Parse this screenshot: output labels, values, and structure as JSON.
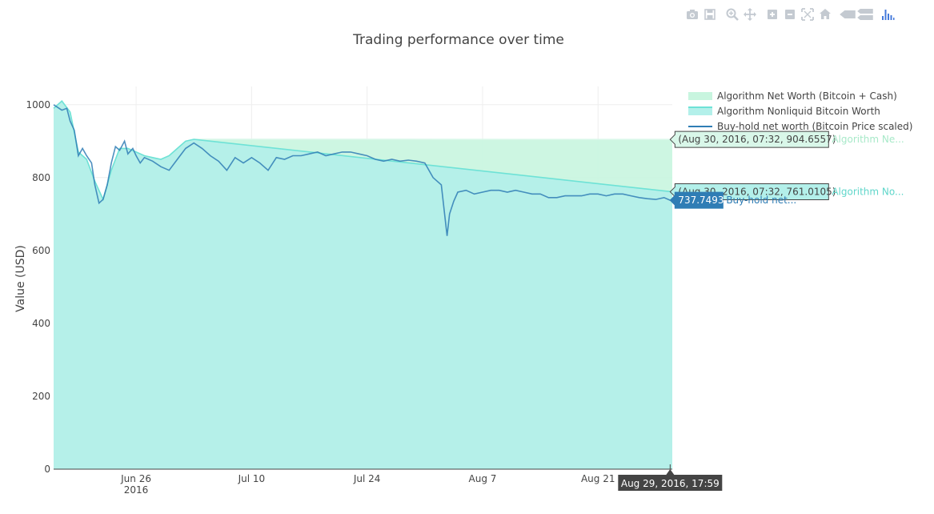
{
  "modebar": {
    "buttons": [
      {
        "name": "camera-icon",
        "group": 0
      },
      {
        "name": "save-icon",
        "group": 0
      },
      {
        "name": "zoom-icon",
        "group": 1
      },
      {
        "name": "pan-icon",
        "group": 1
      },
      {
        "name": "zoom-in-icon",
        "group": 2
      },
      {
        "name": "zoom-out-icon",
        "group": 2
      },
      {
        "name": "autoscale-icon",
        "group": 2
      },
      {
        "name": "reset-axes-icon",
        "group": 2
      },
      {
        "name": "hover-closest-icon",
        "group": 3
      },
      {
        "name": "hover-compare-icon",
        "group": 3
      },
      {
        "name": "plotly-logo-icon",
        "group": 4
      }
    ],
    "icon_color": "#c4cad1",
    "logo_color": "#447adb"
  },
  "chart_data": {
    "type": "area",
    "title": "Trading performance over time",
    "xlabel": "",
    "ylabel": "Value (USD)",
    "xlim": [
      "2016-06-16",
      "2016-08-30"
    ],
    "ylim": [
      0,
      1050
    ],
    "grid": true,
    "legend_position": "top-right",
    "x_ticks": [
      {
        "date": "2016-06-26",
        "label": "Jun 26",
        "sublabel": "2016"
      },
      {
        "date": "2016-07-10",
        "label": "Jul 10",
        "sublabel": ""
      },
      {
        "date": "2016-07-24",
        "label": "Jul 24",
        "sublabel": ""
      },
      {
        "date": "2016-08-07",
        "label": "Aug 7",
        "sublabel": ""
      },
      {
        "date": "2016-08-21",
        "label": "Aug 21",
        "sublabel": ""
      }
    ],
    "y_ticks": [
      0,
      200,
      400,
      600,
      800,
      1000
    ],
    "series": [
      {
        "name": "Algorithm Net Worth (Bitcoin + Cash)",
        "kind": "area",
        "color": "#c8f5df",
        "line_color": "#d9f7e9",
        "points": [
          [
            "2016-06-16",
            990
          ],
          [
            "2016-06-17",
            1010
          ],
          [
            "2016-06-18",
            980
          ],
          [
            "2016-06-19",
            870
          ],
          [
            "2016-06-20",
            850
          ],
          [
            "2016-06-21",
            790
          ],
          [
            "2016-06-22",
            740
          ],
          [
            "2016-06-23",
            820
          ],
          [
            "2016-06-24",
            880
          ],
          [
            "2016-06-25",
            880
          ],
          [
            "2016-06-26",
            870
          ],
          [
            "2016-06-27",
            860
          ],
          [
            "2016-06-28",
            855
          ],
          [
            "2016-06-29",
            850
          ],
          [
            "2016-06-30",
            860
          ],
          [
            "2016-07-01",
            880
          ],
          [
            "2016-07-02",
            900
          ],
          [
            "2016-07-03",
            905
          ],
          [
            "2016-08-30",
            904.6557
          ]
        ]
      },
      {
        "name": "Algorithm Nonliquid Bitcoin Worth",
        "kind": "area",
        "color": "#b3f0ea",
        "line_color": "#6ee2d6",
        "points": [
          [
            "2016-06-16",
            990
          ],
          [
            "2016-06-17",
            1010
          ],
          [
            "2016-06-18",
            980
          ],
          [
            "2016-06-19",
            870
          ],
          [
            "2016-06-20",
            850
          ],
          [
            "2016-06-21",
            790
          ],
          [
            "2016-06-22",
            740
          ],
          [
            "2016-06-23",
            820
          ],
          [
            "2016-06-24",
            880
          ],
          [
            "2016-06-25",
            880
          ],
          [
            "2016-06-26",
            870
          ],
          [
            "2016-06-27",
            860
          ],
          [
            "2016-06-28",
            855
          ],
          [
            "2016-06-29",
            850
          ],
          [
            "2016-06-30",
            860
          ],
          [
            "2016-07-01",
            880
          ],
          [
            "2016-07-02",
            900
          ],
          [
            "2016-07-03",
            905
          ],
          [
            "2016-08-30",
            761.0105
          ]
        ]
      },
      {
        "name": "Buy-hold net worth (Bitcoin Price scaled)",
        "kind": "line",
        "color": "#2f7db5",
        "points": [
          [
            "2016-06-16",
            1000
          ],
          [
            "2016-06-17",
            985
          ],
          [
            "2016-06-17.6",
            990
          ],
          [
            "2016-06-18",
            955
          ],
          [
            "2016-06-18.5",
            930
          ],
          [
            "2016-06-19",
            860
          ],
          [
            "2016-06-19.5",
            880
          ],
          [
            "2016-06-20",
            860
          ],
          [
            "2016-06-20.6",
            840
          ],
          [
            "2016-06-21",
            780
          ],
          [
            "2016-06-21.5",
            730
          ],
          [
            "2016-06-22",
            740
          ],
          [
            "2016-06-22.5",
            780
          ],
          [
            "2016-06-23",
            840
          ],
          [
            "2016-06-23.5",
            885
          ],
          [
            "2016-06-24",
            875
          ],
          [
            "2016-06-24.6",
            900
          ],
          [
            "2016-06-25",
            865
          ],
          [
            "2016-06-25.6",
            880
          ],
          [
            "2016-06-26",
            860
          ],
          [
            "2016-06-26.5",
            840
          ],
          [
            "2016-06-27",
            855
          ],
          [
            "2016-06-28",
            845
          ],
          [
            "2016-06-29",
            830
          ],
          [
            "2016-06-30",
            820
          ],
          [
            "2016-07-01",
            850
          ],
          [
            "2016-07-02",
            880
          ],
          [
            "2016-07-03",
            895
          ],
          [
            "2016-07-04",
            880
          ],
          [
            "2016-07-05",
            860
          ],
          [
            "2016-07-06",
            845
          ],
          [
            "2016-07-07",
            820
          ],
          [
            "2016-07-08",
            855
          ],
          [
            "2016-07-09",
            840
          ],
          [
            "2016-07-10",
            855
          ],
          [
            "2016-07-11",
            840
          ],
          [
            "2016-07-12",
            820
          ],
          [
            "2016-07-13",
            855
          ],
          [
            "2016-07-14",
            850
          ],
          [
            "2016-07-15",
            860
          ],
          [
            "2016-07-16",
            860
          ],
          [
            "2016-07-17",
            865
          ],
          [
            "2016-07-18",
            870
          ],
          [
            "2016-07-19",
            860
          ],
          [
            "2016-07-20",
            865
          ],
          [
            "2016-07-21",
            870
          ],
          [
            "2016-07-22",
            870
          ],
          [
            "2016-07-23",
            865
          ],
          [
            "2016-07-24",
            860
          ],
          [
            "2016-07-25",
            850
          ],
          [
            "2016-07-26",
            845
          ],
          [
            "2016-07-27",
            850
          ],
          [
            "2016-07-28",
            845
          ],
          [
            "2016-07-29",
            848
          ],
          [
            "2016-07-30",
            845
          ],
          [
            "2016-07-31",
            840
          ],
          [
            "2016-08-01",
            800
          ],
          [
            "2016-08-02",
            780
          ],
          [
            "2016-08-02.7",
            640
          ],
          [
            "2016-08-03",
            700
          ],
          [
            "2016-08-03.5",
            735
          ],
          [
            "2016-08-04",
            760
          ],
          [
            "2016-08-05",
            765
          ],
          [
            "2016-08-06",
            755
          ],
          [
            "2016-08-07",
            760
          ],
          [
            "2016-08-08",
            765
          ],
          [
            "2016-08-09",
            765
          ],
          [
            "2016-08-10",
            760
          ],
          [
            "2016-08-11",
            765
          ],
          [
            "2016-08-12",
            760
          ],
          [
            "2016-08-13",
            755
          ],
          [
            "2016-08-14",
            755
          ],
          [
            "2016-08-15",
            745
          ],
          [
            "2016-08-16",
            745
          ],
          [
            "2016-08-17",
            750
          ],
          [
            "2016-08-18",
            750
          ],
          [
            "2016-08-19",
            750
          ],
          [
            "2016-08-20",
            755
          ],
          [
            "2016-08-21",
            755
          ],
          [
            "2016-08-22",
            750
          ],
          [
            "2016-08-23",
            755
          ],
          [
            "2016-08-24",
            755
          ],
          [
            "2016-08-25",
            750
          ],
          [
            "2016-08-26",
            745
          ],
          [
            "2016-08-27",
            742
          ],
          [
            "2016-08-28",
            740
          ],
          [
            "2016-08-29",
            745
          ],
          [
            "2016-08-29.74",
            737.7493
          ]
        ]
      }
    ],
    "hover": {
      "x_label": "Aug 29, 2016, 17:59",
      "x_date": "2016-08-29.74",
      "items": [
        {
          "text": "(Aug 30, 2016, 07:32, 904.6557)",
          "value": 904.6557,
          "name_short": "Algorithm Ne...",
          "bg": "#d9f7e9",
          "name_color": "#a8e9c9"
        },
        {
          "text": "(Aug 30, 2016, 07:32, 761.0105)",
          "value": 761.0105,
          "name_short": "Algorithm No...",
          "bg": "#b3f0ea",
          "name_color": "#5fd6ca"
        },
        {
          "text": "737.7493",
          "value": 737.7493,
          "name_short": "Buy-hold net...",
          "bg": "#2f7db5",
          "name_color": "#2f7db5"
        }
      ]
    }
  }
}
